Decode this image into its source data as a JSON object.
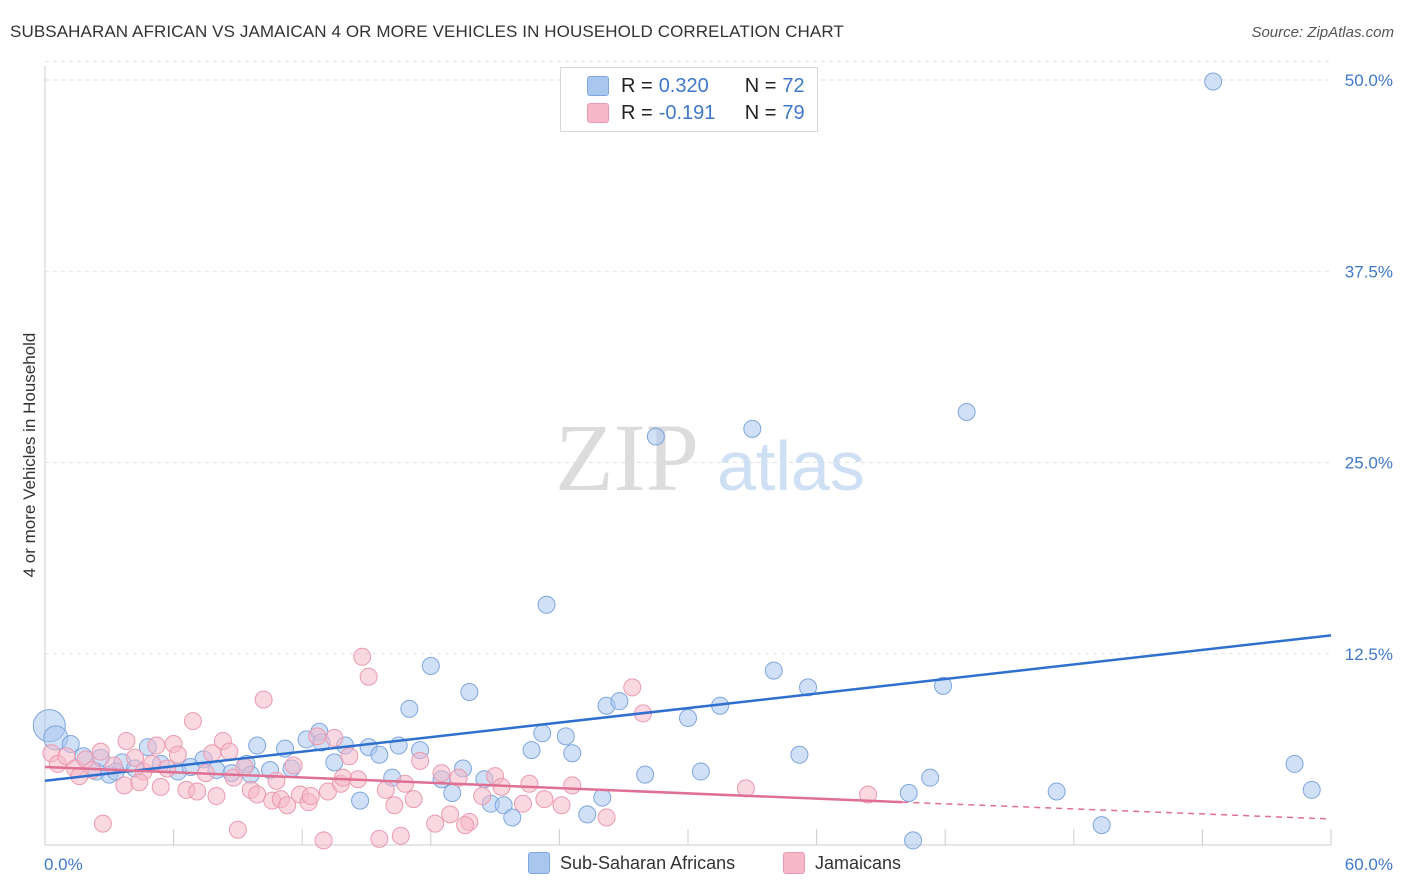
{
  "header": {
    "title": "SUBSAHARAN AFRICAN VS JAMAICAN 4 OR MORE VEHICLES IN HOUSEHOLD CORRELATION CHART",
    "source": "Source: ZipAtlas.com"
  },
  "watermark": {
    "zip": "ZIP",
    "atlas": "atlas"
  },
  "legend": {
    "rows": [
      {
        "label": "R =",
        "r": "0.320",
        "n_label": "N =",
        "n": "72",
        "color": "#a9c6ef"
      },
      {
        "label": "R =",
        "r": "-0.191",
        "n_label": "N =",
        "n": "79",
        "color": "#f6b8c9"
      }
    ]
  },
  "bottom_legend": {
    "items": [
      {
        "label": "Sub-Saharan Africans",
        "color": "#a9c6ef"
      },
      {
        "label": "Jamaicans",
        "color": "#f6b8c9"
      }
    ]
  },
  "chart_data": {
    "type": "scatter",
    "title": "SUBSAHARAN AFRICAN VS JAMAICAN 4 OR MORE VEHICLES IN HOUSEHOLD CORRELATION CHART",
    "xlabel": "",
    "ylabel": "4 or more Vehicles in Household",
    "xlim": [
      0,
      60
    ],
    "ylim": [
      0,
      52
    ],
    "x_tick_labels": [
      {
        "value": 0,
        "label": "0.0%"
      },
      {
        "value": 60,
        "label": "60.0%"
      }
    ],
    "y_tick_labels": [
      {
        "value": 12.5,
        "label": "12.5%"
      },
      {
        "value": 25,
        "label": "25.0%"
      },
      {
        "value": 37.5,
        "label": "37.5%"
      },
      {
        "value": 50,
        "label": "50.0%"
      }
    ],
    "series": [
      {
        "name": "Sub-Saharan Africans",
        "color": "#a9c6ef",
        "stroke": "#7fa6de",
        "trend_color": "#2f6fce",
        "trend": {
          "x": [
            0,
            60
          ],
          "y": [
            4.2,
            13.7
          ]
        },
        "points": [
          [
            0.2,
            7.8
          ],
          [
            0.5,
            7.0
          ],
          [
            1.2,
            6.6
          ],
          [
            1.8,
            5.8
          ],
          [
            2.4,
            4.8
          ],
          [
            3.0,
            4.6
          ],
          [
            3.6,
            5.4
          ],
          [
            4.2,
            5.0
          ],
          [
            4.8,
            6.4
          ],
          [
            5.4,
            5.3
          ],
          [
            6.2,
            4.8
          ],
          [
            6.8,
            5.1
          ],
          [
            7.4,
            5.6
          ],
          [
            8.0,
            4.9
          ],
          [
            8.7,
            4.7
          ],
          [
            9.4,
            5.3
          ],
          [
            9.9,
            6.5
          ],
          [
            10.5,
            4.9
          ],
          [
            11.2,
            6.3
          ],
          [
            11.5,
            5.0
          ],
          [
            12.2,
            6.9
          ],
          [
            12.8,
            7.4
          ],
          [
            12.9,
            6.7
          ],
          [
            13.5,
            5.4
          ],
          [
            14.0,
            6.5
          ],
          [
            14.7,
            2.9
          ],
          [
            15.1,
            6.4
          ],
          [
            15.6,
            5.9
          ],
          [
            16.2,
            4.4
          ],
          [
            16.5,
            6.5
          ],
          [
            17.0,
            8.9
          ],
          [
            17.5,
            6.2
          ],
          [
            18.0,
            11.7
          ],
          [
            18.5,
            4.3
          ],
          [
            19.0,
            3.4
          ],
          [
            19.5,
            5.0
          ],
          [
            19.8,
            10.0
          ],
          [
            20.5,
            4.3
          ],
          [
            20.8,
            2.7
          ],
          [
            21.4,
            2.6
          ],
          [
            21.8,
            1.8
          ],
          [
            22.7,
            6.2
          ],
          [
            23.2,
            7.3
          ],
          [
            23.4,
            15.7
          ],
          [
            24.3,
            7.1
          ],
          [
            24.6,
            6.0
          ],
          [
            25.3,
            2.0
          ],
          [
            26.0,
            3.1
          ],
          [
            26.2,
            9.1
          ],
          [
            26.8,
            9.4
          ],
          [
            28.0,
            4.6
          ],
          [
            28.5,
            26.7
          ],
          [
            30.0,
            8.3
          ],
          [
            30.6,
            4.8
          ],
          [
            31.5,
            9.1
          ],
          [
            33.0,
            27.2
          ],
          [
            34.0,
            11.4
          ],
          [
            35.2,
            5.9
          ],
          [
            35.6,
            10.3
          ],
          [
            40.3,
            3.4
          ],
          [
            40.5,
            0.3
          ],
          [
            41.3,
            4.4
          ],
          [
            41.9,
            10.4
          ],
          [
            43.0,
            28.3
          ],
          [
            47.2,
            3.5
          ],
          [
            49.3,
            1.3
          ],
          [
            54.5,
            49.9
          ],
          [
            58.3,
            5.3
          ],
          [
            59.1,
            3.6
          ],
          [
            2.6,
            5.7
          ],
          [
            3.3,
            4.8
          ],
          [
            9.6,
            4.6
          ]
        ]
      },
      {
        "name": "Jamaicans",
        "color": "#f6b8c9",
        "stroke": "#ea9ab0",
        "trend_color": "#df6f93",
        "trend": {
          "x": [
            0,
            40
          ],
          "y": [
            5.1,
            2.8
          ]
        },
        "trend_dashed": {
          "x": [
            40,
            60
          ],
          "y": [
            2.8,
            1.7
          ]
        },
        "points": [
          [
            0.3,
            6.0
          ],
          [
            0.6,
            5.3
          ],
          [
            1.0,
            5.8
          ],
          [
            1.4,
            5.0
          ],
          [
            1.9,
            5.6
          ],
          [
            2.2,
            4.9
          ],
          [
            2.6,
            6.1
          ],
          [
            2.7,
            1.4
          ],
          [
            3.2,
            5.2
          ],
          [
            3.7,
            3.9
          ],
          [
            3.8,
            6.8
          ],
          [
            4.2,
            5.7
          ],
          [
            4.6,
            4.8
          ],
          [
            5.0,
            5.3
          ],
          [
            5.2,
            6.5
          ],
          [
            5.4,
            3.8
          ],
          [
            5.7,
            5.0
          ],
          [
            6.0,
            6.6
          ],
          [
            6.2,
            5.9
          ],
          [
            6.6,
            3.6
          ],
          [
            6.9,
            8.1
          ],
          [
            7.1,
            3.5
          ],
          [
            7.5,
            4.7
          ],
          [
            7.8,
            6.0
          ],
          [
            8.0,
            3.2
          ],
          [
            8.3,
            6.8
          ],
          [
            8.6,
            6.1
          ],
          [
            8.8,
            4.4
          ],
          [
            9.0,
            1.0
          ],
          [
            9.3,
            5.1
          ],
          [
            9.6,
            3.6
          ],
          [
            9.9,
            3.3
          ],
          [
            10.2,
            9.5
          ],
          [
            10.6,
            2.9
          ],
          [
            11.0,
            3.0
          ],
          [
            11.3,
            2.6
          ],
          [
            11.6,
            5.2
          ],
          [
            11.9,
            3.3
          ],
          [
            12.3,
            2.8
          ],
          [
            12.4,
            3.2
          ],
          [
            12.7,
            7.1
          ],
          [
            13.0,
            0.3
          ],
          [
            13.2,
            3.5
          ],
          [
            13.5,
            7.0
          ],
          [
            13.8,
            4.0
          ],
          [
            14.2,
            5.8
          ],
          [
            14.6,
            4.3
          ],
          [
            14.8,
            12.3
          ],
          [
            15.1,
            11.0
          ],
          [
            15.6,
            0.4
          ],
          [
            15.9,
            3.6
          ],
          [
            16.3,
            2.6
          ],
          [
            16.6,
            0.6
          ],
          [
            17.2,
            3.0
          ],
          [
            17.5,
            5.5
          ],
          [
            18.2,
            1.4
          ],
          [
            18.5,
            4.7
          ],
          [
            18.9,
            2.0
          ],
          [
            19.3,
            4.4
          ],
          [
            19.8,
            1.5
          ],
          [
            20.4,
            3.2
          ],
          [
            21.0,
            4.5
          ],
          [
            21.3,
            3.8
          ],
          [
            22.6,
            4.0
          ],
          [
            23.3,
            3.0
          ],
          [
            24.1,
            2.6
          ],
          [
            24.6,
            3.9
          ],
          [
            26.2,
            1.8
          ],
          [
            27.4,
            10.3
          ],
          [
            27.9,
            8.6
          ],
          [
            32.7,
            3.7
          ],
          [
            38.4,
            3.3
          ],
          [
            1.6,
            4.5
          ],
          [
            4.4,
            4.1
          ],
          [
            10.8,
            4.2
          ],
          [
            13.9,
            4.4
          ],
          [
            16.8,
            4.0
          ],
          [
            19.6,
            1.3
          ],
          [
            22.3,
            2.7
          ]
        ]
      }
    ]
  }
}
